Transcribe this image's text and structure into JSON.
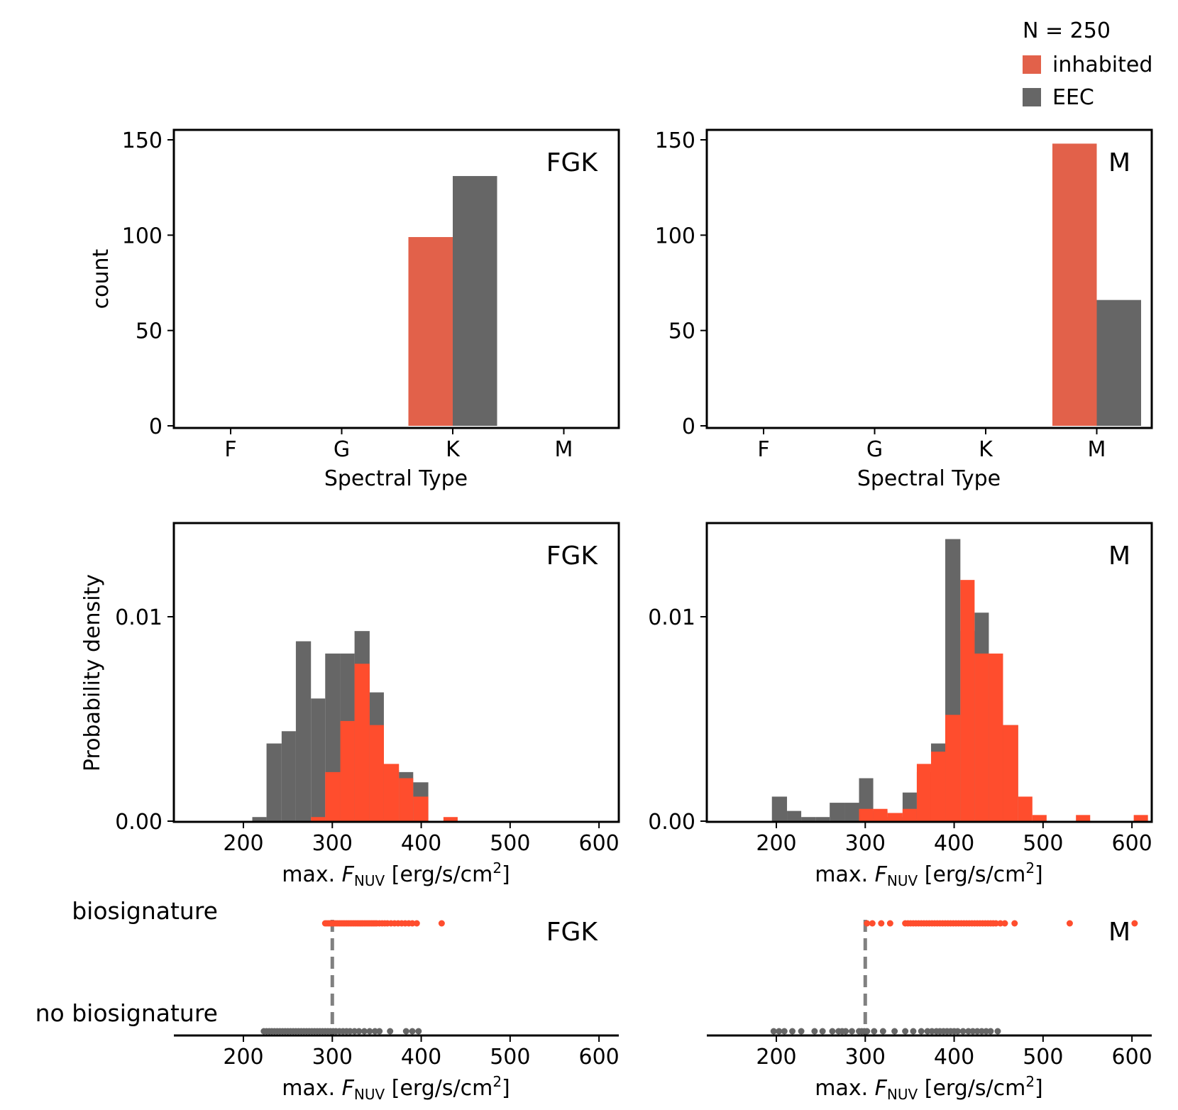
{
  "legend": {
    "title": "N = 250",
    "entries": [
      {
        "label": "inhabited",
        "color": "#E2614A"
      },
      {
        "label": "EEC",
        "color": "#666666"
      }
    ]
  },
  "colors": {
    "inhabited_bar": "#E2614A",
    "inhabited_hist": "#FF4D2D",
    "eec": "#666666",
    "threshold_line": "#808080"
  },
  "chart_data": [
    {
      "id": "fgk-count",
      "type": "bar",
      "panel_label": "FGK",
      "categories": [
        "F",
        "G",
        "K",
        "M"
      ],
      "series": [
        {
          "name": "inhabited",
          "values": [
            0,
            0,
            99,
            0
          ]
        },
        {
          "name": "EEC",
          "values": [
            0,
            0,
            131,
            0
          ]
        }
      ],
      "xlabel": "Spectral Type",
      "ylabel": "count",
      "ylim": [
        0,
        155
      ],
      "yticks": [
        0,
        50,
        100,
        150
      ]
    },
    {
      "id": "m-count",
      "type": "bar",
      "panel_label": "M",
      "categories": [
        "F",
        "G",
        "K",
        "M"
      ],
      "series": [
        {
          "name": "inhabited",
          "values": [
            0,
            0,
            0,
            148
          ]
        },
        {
          "name": "EEC",
          "values": [
            0,
            0,
            0,
            66
          ]
        }
      ],
      "xlabel": "Spectral Type",
      "ylabel": "",
      "ylim": [
        0,
        155
      ],
      "yticks": [
        0,
        50,
        100,
        150
      ]
    },
    {
      "id": "fgk-hist",
      "type": "histogram",
      "panel_label": "FGK",
      "xlabel": "max. F_NUV [erg/s/cm2]",
      "ylabel": "Probability density",
      "xlim": [
        125,
        610
      ],
      "ylim": [
        0,
        0.0145
      ],
      "xticks": [
        200,
        300,
        400,
        500,
        600
      ],
      "yticks": [
        0.0,
        0.01
      ],
      "ytick_labels": [
        "0.00",
        "0.01"
      ],
      "series": [
        {
          "name": "EEC",
          "bins": [
            [
              210,
              226,
              0.0002
            ],
            [
              226,
              243,
              0.0038
            ],
            [
              243,
              259,
              0.0044
            ],
            [
              259,
              276,
              0.0088
            ],
            [
              276,
              292,
              0.006
            ],
            [
              292,
              309,
              0.0082
            ],
            [
              309,
              325,
              0.0082
            ],
            [
              325,
              342,
              0.0093
            ],
            [
              342,
              358,
              0.0063
            ],
            [
              358,
              375,
              0.0025
            ],
            [
              375,
              391,
              0.0024
            ],
            [
              391,
              408,
              0.0019
            ]
          ]
        },
        {
          "name": "inhabited",
          "bins": [
            [
              276,
              292,
              0.0002
            ],
            [
              292,
              309,
              0.0024
            ],
            [
              309,
              325,
              0.0049
            ],
            [
              325,
              342,
              0.0077
            ],
            [
              342,
              358,
              0.0047
            ],
            [
              358,
              375,
              0.0028
            ],
            [
              375,
              391,
              0.0021
            ],
            [
              391,
              408,
              0.0012
            ],
            [
              408,
              425,
              0.0
            ],
            [
              425,
              441,
              0.0002
            ]
          ]
        }
      ]
    },
    {
      "id": "m-hist",
      "type": "histogram",
      "panel_label": "M",
      "xlabel": "max. F_NUV [erg/s/cm2]",
      "ylabel": "",
      "xlim": [
        125,
        610
      ],
      "ylim": [
        0,
        0.0145
      ],
      "xticks": [
        200,
        300,
        400,
        500,
        600
      ],
      "yticks": [
        0.0,
        0.01
      ],
      "ytick_labels": [
        "0.00",
        "0.01"
      ],
      "series": [
        {
          "name": "EEC",
          "bins": [
            [
              195,
              212,
              0.0012
            ],
            [
              212,
              228,
              0.0005
            ],
            [
              228,
              244,
              0.0002
            ],
            [
              244,
              260,
              0.0002
            ],
            [
              260,
              277,
              0.0009
            ],
            [
              277,
              293,
              0.0009
            ],
            [
              293,
              309,
              0.0021
            ],
            [
              309,
              325,
              0.0005
            ],
            [
              325,
              342,
              0.0002
            ],
            [
              342,
              358,
              0.0014
            ],
            [
              358,
              374,
              0.0024
            ],
            [
              374,
              390,
              0.0038
            ],
            [
              390,
              407,
              0.0138
            ],
            [
              407,
              423,
              0.0093
            ],
            [
              423,
              439,
              0.0102
            ],
            [
              439,
              455,
              0.0059
            ],
            [
              455,
              472,
              0.0047
            ]
          ]
        },
        {
          "name": "inhabited",
          "bins": [
            [
              293,
              309,
              0.0006
            ],
            [
              309,
              325,
              0.0006
            ],
            [
              325,
              342,
              0.0004
            ],
            [
              342,
              358,
              0.0006
            ],
            [
              358,
              374,
              0.0028
            ],
            [
              374,
              390,
              0.0034
            ],
            [
              390,
              407,
              0.0052
            ],
            [
              407,
              423,
              0.0118
            ],
            [
              423,
              439,
              0.0082
            ],
            [
              439,
              455,
              0.0082
            ],
            [
              455,
              472,
              0.0047
            ],
            [
              472,
              488,
              0.0012
            ],
            [
              488,
              504,
              0.0003
            ],
            [
              504,
              520,
              0.0
            ],
            [
              520,
              537,
              0.0
            ],
            [
              537,
              553,
              0.0003
            ],
            [
              553,
              569,
              0.0
            ],
            [
              569,
              585,
              0.0
            ],
            [
              585,
              602,
              0.0
            ],
            [
              602,
              618,
              0.0003
            ]
          ]
        }
      ]
    },
    {
      "id": "fgk-strip",
      "type": "scatter",
      "panel_label": "FGK",
      "xlabel": "max. F_NUV [erg/s/cm2]",
      "xlim": [
        125,
        610
      ],
      "xticks": [
        200,
        300,
        400,
        500,
        600
      ],
      "categories": [
        "no biosignature",
        "biosignature"
      ],
      "threshold": 300,
      "series": [
        {
          "name": "biosignature",
          "x": [
            292,
            294,
            296,
            298,
            300,
            302,
            304,
            306,
            308,
            310,
            312,
            314,
            316,
            318,
            320,
            322,
            324,
            326,
            328,
            330,
            332,
            334,
            336,
            338,
            340,
            342,
            344,
            346,
            348,
            350,
            353,
            356,
            359,
            362,
            366,
            370,
            374,
            378,
            382,
            386,
            390,
            395,
            423
          ]
        },
        {
          "name": "no biosignature",
          "x": [
            223,
            226,
            229,
            232,
            235,
            238,
            241,
            244,
            247,
            250,
            253,
            256,
            259,
            262,
            265,
            268,
            271,
            274,
            277,
            280,
            283,
            286,
            289,
            292,
            295,
            298,
            301,
            304,
            308,
            312,
            316,
            320,
            325,
            330,
            336,
            342,
            348,
            353,
            365,
            383,
            390,
            397
          ]
        }
      ]
    },
    {
      "id": "m-strip",
      "type": "scatter",
      "panel_label": "M",
      "xlabel": "max. F_NUV [erg/s/cm2]",
      "xlim": [
        125,
        610
      ],
      "xticks": [
        200,
        300,
        400,
        500,
        600
      ],
      "categories": [
        "no biosignature",
        "biosignature"
      ],
      "threshold": 300,
      "series": [
        {
          "name": "biosignature",
          "x": [
            302,
            308,
            318,
            328,
            345,
            348,
            351,
            354,
            357,
            360,
            363,
            366,
            369,
            372,
            375,
            378,
            381,
            384,
            387,
            390,
            393,
            396,
            399,
            402,
            405,
            408,
            411,
            414,
            417,
            420,
            423,
            426,
            429,
            432,
            435,
            438,
            441,
            444,
            447,
            452,
            457,
            468,
            530,
            603
          ]
        },
        {
          "name": "no biosignature",
          "x": [
            197,
            203,
            209,
            218,
            228,
            243,
            252,
            263,
            270,
            274,
            278,
            285,
            293,
            296,
            299,
            302,
            310,
            320,
            333,
            345,
            354,
            363,
            370,
            375,
            380,
            384,
            388,
            392,
            396,
            400,
            404,
            410,
            416,
            421,
            426,
            431,
            436,
            441,
            449
          ]
        }
      ]
    }
  ]
}
